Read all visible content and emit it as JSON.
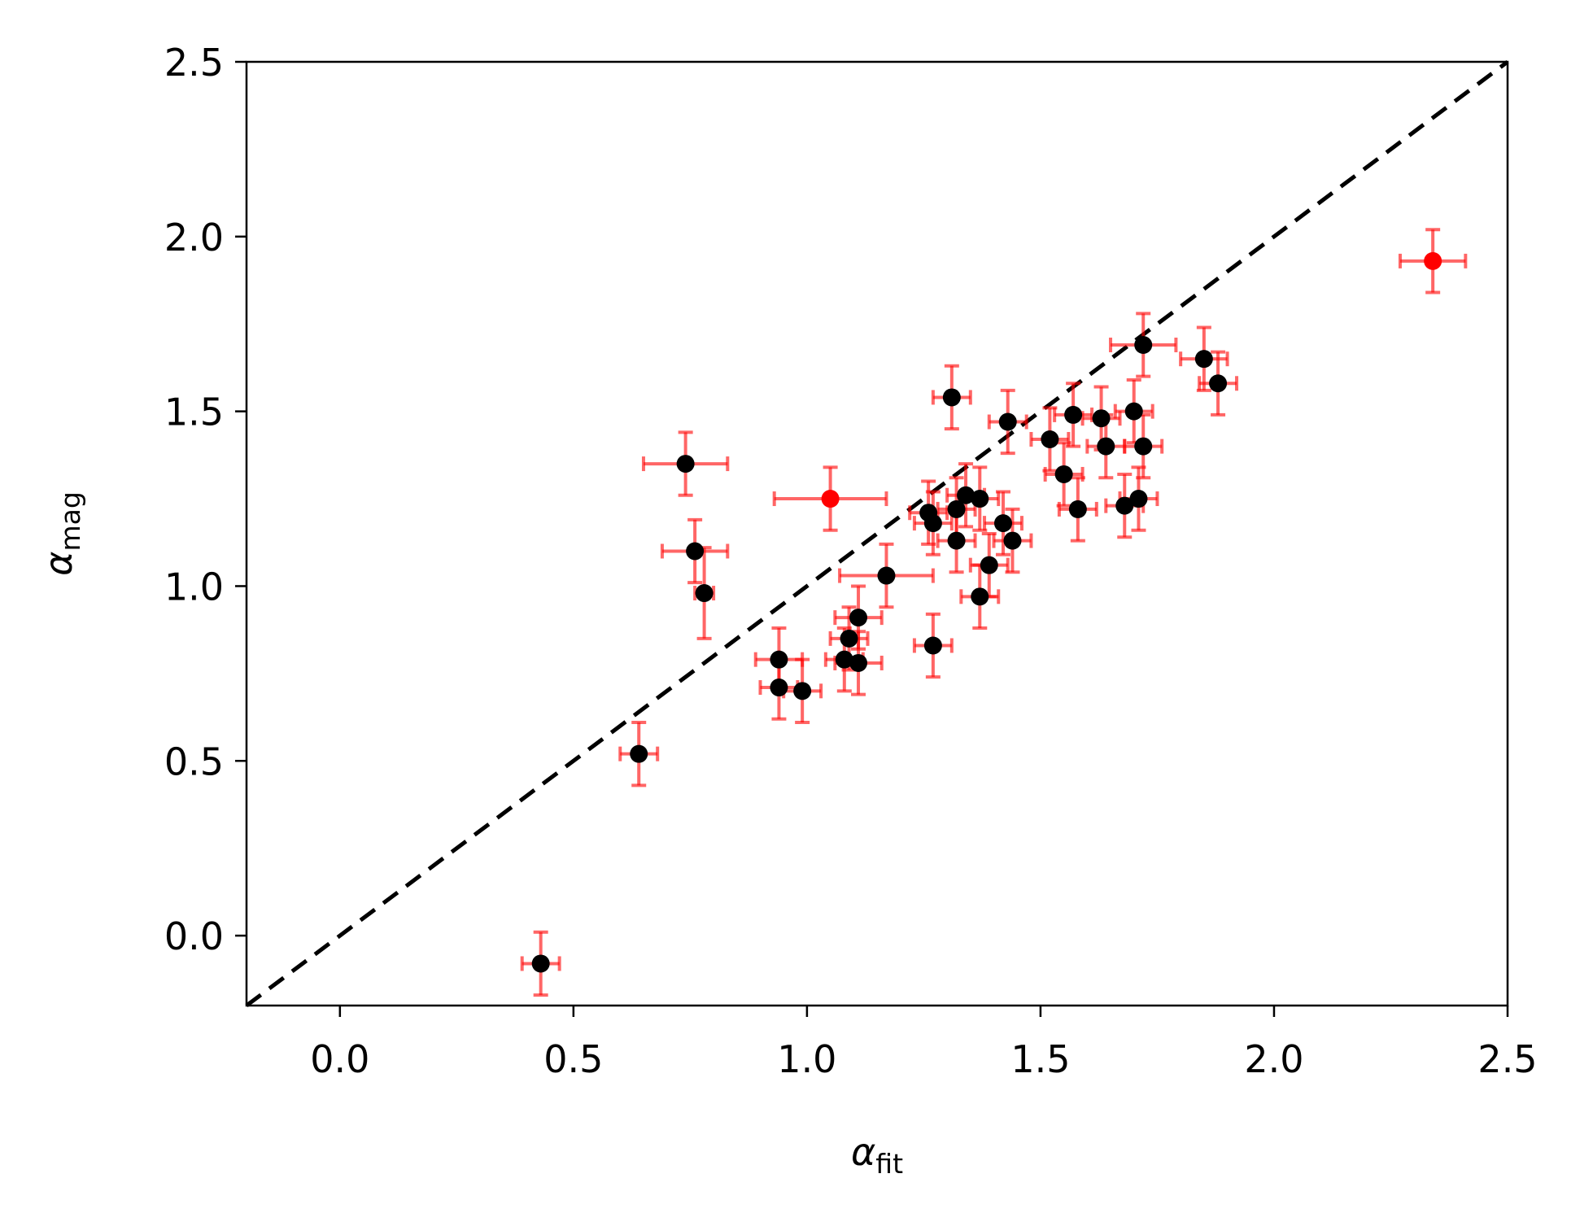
{
  "chart_data": {
    "type": "scatter",
    "xlim": [
      -0.2,
      2.5
    ],
    "ylim": [
      -0.2,
      2.5
    ],
    "xticks": [
      0.0,
      0.5,
      1.0,
      1.5,
      2.0,
      2.5
    ],
    "yticks": [
      0.0,
      0.5,
      1.0,
      1.5,
      2.0,
      2.5
    ],
    "xtick_labels": [
      "0.0",
      "0.5",
      "1.0",
      "1.5",
      "2.0",
      "2.5"
    ],
    "ytick_labels": [
      "0.0",
      "0.5",
      "1.0",
      "1.5",
      "2.0",
      "2.5"
    ],
    "xlabel": {
      "symbol": "α",
      "sub": "fit"
    },
    "ylabel": {
      "symbol": "α",
      "sub": "mag"
    },
    "grid": false,
    "reference_line": {
      "style": "dashed",
      "color": "#000000",
      "x": [
        -0.2,
        2.5
      ],
      "y": [
        -0.2,
        2.5
      ]
    },
    "errorbar_color": "#ff0000",
    "errorbar_alpha": 0.6,
    "series": [
      {
        "color": "#000000",
        "points": [
          {
            "x": 0.43,
            "y": -0.08,
            "xerr": 0.04,
            "yerr": 0.09
          },
          {
            "x": 0.64,
            "y": 0.52,
            "xerr": 0.04,
            "yerr": 0.09
          },
          {
            "x": 0.74,
            "y": 1.35,
            "xerr": 0.09,
            "yerr": 0.09
          },
          {
            "x": 0.76,
            "y": 1.1,
            "xerr": 0.07,
            "yerr": 0.09
          },
          {
            "x": 0.78,
            "y": 0.98,
            "xerr": 0.02,
            "yerr": 0.13
          },
          {
            "x": 0.94,
            "y": 0.71,
            "xerr": 0.04,
            "yerr": 0.09
          },
          {
            "x": 0.94,
            "y": 0.79,
            "xerr": 0.05,
            "yerr": 0.09
          },
          {
            "x": 0.99,
            "y": 0.7,
            "xerr": 0.04,
            "yerr": 0.09
          },
          {
            "x": 1.08,
            "y": 0.79,
            "xerr": 0.04,
            "yerr": 0.09
          },
          {
            "x": 1.09,
            "y": 0.85,
            "xerr": 0.04,
            "yerr": 0.09
          },
          {
            "x": 1.11,
            "y": 0.78,
            "xerr": 0.05,
            "yerr": 0.09
          },
          {
            "x": 1.11,
            "y": 0.91,
            "xerr": 0.05,
            "yerr": 0.09
          },
          {
            "x": 1.17,
            "y": 1.03,
            "xerr": 0.1,
            "yerr": 0.09
          },
          {
            "x": 1.27,
            "y": 0.83,
            "xerr": 0.04,
            "yerr": 0.09
          },
          {
            "x": 1.26,
            "y": 1.21,
            "xerr": 0.04,
            "yerr": 0.09
          },
          {
            "x": 1.27,
            "y": 1.18,
            "xerr": 0.04,
            "yerr": 0.09
          },
          {
            "x": 1.31,
            "y": 1.54,
            "xerr": 0.04,
            "yerr": 0.09
          },
          {
            "x": 1.32,
            "y": 1.13,
            "xerr": 0.04,
            "yerr": 0.09
          },
          {
            "x": 1.32,
            "y": 1.22,
            "xerr": 0.04,
            "yerr": 0.09
          },
          {
            "x": 1.34,
            "y": 1.26,
            "xerr": 0.04,
            "yerr": 0.09
          },
          {
            "x": 1.37,
            "y": 1.25,
            "xerr": 0.04,
            "yerr": 0.09
          },
          {
            "x": 1.37,
            "y": 0.97,
            "xerr": 0.04,
            "yerr": 0.09
          },
          {
            "x": 1.39,
            "y": 1.06,
            "xerr": 0.04,
            "yerr": 0.09
          },
          {
            "x": 1.42,
            "y": 1.18,
            "xerr": 0.04,
            "yerr": 0.09
          },
          {
            "x": 1.43,
            "y": 1.47,
            "xerr": 0.04,
            "yerr": 0.09
          },
          {
            "x": 1.44,
            "y": 1.13,
            "xerr": 0.04,
            "yerr": 0.09
          },
          {
            "x": 1.52,
            "y": 1.42,
            "xerr": 0.04,
            "yerr": 0.09
          },
          {
            "x": 1.55,
            "y": 1.32,
            "xerr": 0.04,
            "yerr": 0.09
          },
          {
            "x": 1.57,
            "y": 1.49,
            "xerr": 0.04,
            "yerr": 0.09
          },
          {
            "x": 1.58,
            "y": 1.22,
            "xerr": 0.04,
            "yerr": 0.09
          },
          {
            "x": 1.63,
            "y": 1.48,
            "xerr": 0.04,
            "yerr": 0.09
          },
          {
            "x": 1.64,
            "y": 1.4,
            "xerr": 0.04,
            "yerr": 0.09
          },
          {
            "x": 1.68,
            "y": 1.23,
            "xerr": 0.04,
            "yerr": 0.09
          },
          {
            "x": 1.7,
            "y": 1.5,
            "xerr": 0.04,
            "yerr": 0.09
          },
          {
            "x": 1.71,
            "y": 1.25,
            "xerr": 0.04,
            "yerr": 0.09
          },
          {
            "x": 1.72,
            "y": 1.4,
            "xerr": 0.04,
            "yerr": 0.09
          },
          {
            "x": 1.72,
            "y": 1.69,
            "xerr": 0.07,
            "yerr": 0.09
          },
          {
            "x": 1.85,
            "y": 1.65,
            "xerr": 0.05,
            "yerr": 0.09
          },
          {
            "x": 1.88,
            "y": 1.58,
            "xerr": 0.04,
            "yerr": 0.09
          }
        ]
      },
      {
        "color": "#ff0000",
        "points": [
          {
            "x": 1.05,
            "y": 1.25,
            "xerr": 0.12,
            "yerr": 0.09
          },
          {
            "x": 2.34,
            "y": 1.93,
            "xerr": 0.07,
            "yerr": 0.09
          }
        ]
      }
    ]
  }
}
